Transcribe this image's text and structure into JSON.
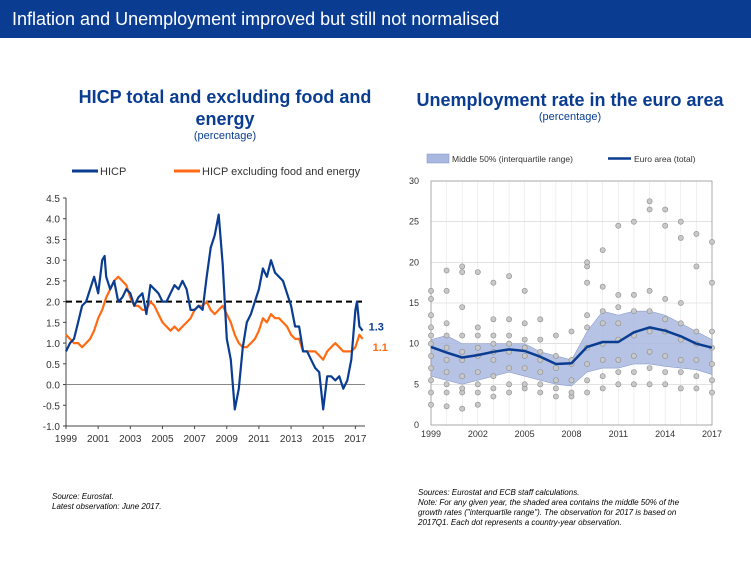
{
  "page": {
    "title": "Inflation and Unemployment improved but still not normalised"
  },
  "left": {
    "title_line1": "HICP total and excluding food and",
    "title_line2": "energy",
    "subtitle": "(percentage)",
    "source_line1": "Source: Eurostat.",
    "source_line2": "Latest observation: June 2017."
  },
  "right": {
    "title": "Unemployment rate in the euro area",
    "subtitle": "(percentage)",
    "source_line1": "Sources: Eurostat and ECB staff calculations.",
    "source_line2": "Note: For any given year, the shaded area contains the middle 50% of the",
    "source_line3": "growth rates (\"interquartile range\"). The observation for 2017 is based on",
    "source_line4": "2017Q1. Each dot represents a country-year observation."
  },
  "chart_data": [
    {
      "type": "line",
      "title": "HICP total and excluding food and energy",
      "subtitle": "(percentage)",
      "ylim": [
        -1.0,
        4.5
      ],
      "xlim": [
        1999,
        2017.6
      ],
      "x_ticks": [
        "1999",
        "2001",
        "2003",
        "2005",
        "2007",
        "2009",
        "2011",
        "2013",
        "2015",
        "2017"
      ],
      "y_ticks": [
        "-1.0",
        "-0.5",
        "0.0",
        "0.5",
        "1.0",
        "1.5",
        "2.0",
        "2.5",
        "3.0",
        "3.5",
        "4.0",
        "4.5"
      ],
      "reference_line": 2.0,
      "colors": {
        "HICP": "#0a3d91",
        "core": "#ff6a13",
        "reference": "#000000"
      },
      "end_labels": [
        "1.3",
        "1.1"
      ],
      "series": [
        {
          "name": "HICP",
          "x": [
            1999.0,
            1999.25,
            1999.5,
            1999.75,
            2000.0,
            2000.25,
            2000.5,
            2000.75,
            2001.0,
            2001.25,
            2001.4,
            2001.5,
            2001.75,
            2002.0,
            2002.25,
            2002.5,
            2002.75,
            2003.0,
            2003.25,
            2003.5,
            2003.75,
            2004.0,
            2004.25,
            2004.5,
            2004.75,
            2005.0,
            2005.25,
            2005.5,
            2005.75,
            2006.0,
            2006.25,
            2006.5,
            2006.75,
            2007.0,
            2007.25,
            2007.5,
            2007.75,
            2008.0,
            2008.25,
            2008.5,
            2008.75,
            2009.0,
            2009.25,
            2009.5,
            2009.75,
            2010.0,
            2010.25,
            2010.5,
            2010.75,
            2011.0,
            2011.25,
            2011.5,
            2011.75,
            2012.0,
            2012.25,
            2012.5,
            2012.75,
            2013.0,
            2013.25,
            2013.5,
            2013.75,
            2014.0,
            2014.25,
            2014.5,
            2014.75,
            2015.0,
            2015.25,
            2015.5,
            2015.75,
            2016.0,
            2016.25,
            2016.5,
            2016.75,
            2017.0,
            2017.1,
            2017.25,
            2017.45
          ],
          "values": [
            0.8,
            1.0,
            1.1,
            1.5,
            1.9,
            2.0,
            2.3,
            2.6,
            2.2,
            3.0,
            3.1,
            2.6,
            2.3,
            2.5,
            2.0,
            2.1,
            2.3,
            2.2,
            1.9,
            2.1,
            2.2,
            1.7,
            2.4,
            2.3,
            2.2,
            2.0,
            2.0,
            2.2,
            2.4,
            2.3,
            2.5,
            2.3,
            1.8,
            1.8,
            1.9,
            1.8,
            2.6,
            3.3,
            3.6,
            4.1,
            2.9,
            1.1,
            0.6,
            -0.6,
            -0.1,
            0.9,
            1.5,
            1.7,
            2.0,
            2.3,
            2.8,
            2.6,
            3.0,
            2.7,
            2.6,
            2.5,
            2.2,
            1.9,
            1.4,
            1.4,
            0.8,
            0.8,
            0.6,
            0.4,
            0.3,
            -0.6,
            0.2,
            0.2,
            0.1,
            0.2,
            -0.1,
            0.1,
            0.6,
            1.8,
            2.0,
            1.4,
            1.3
          ]
        },
        {
          "name": "HICP excluding food and energy",
          "x": [
            1999.0,
            1999.25,
            1999.5,
            1999.75,
            2000.0,
            2000.25,
            2000.5,
            2000.75,
            2001.0,
            2001.25,
            2001.5,
            2001.75,
            2002.0,
            2002.25,
            2002.5,
            2002.75,
            2003.0,
            2003.25,
            2003.5,
            2003.75,
            2004.0,
            2004.25,
            2004.5,
            2004.75,
            2005.0,
            2005.25,
            2005.5,
            2005.75,
            2006.0,
            2006.25,
            2006.5,
            2006.75,
            2007.0,
            2007.25,
            2007.5,
            2007.75,
            2008.0,
            2008.25,
            2008.5,
            2008.75,
            2009.0,
            2009.25,
            2009.5,
            2009.75,
            2010.0,
            2010.25,
            2010.5,
            2010.75,
            2011.0,
            2011.25,
            2011.5,
            2011.75,
            2012.0,
            2012.25,
            2012.5,
            2012.75,
            2013.0,
            2013.25,
            2013.5,
            2013.75,
            2014.0,
            2014.25,
            2014.5,
            2014.75,
            2015.0,
            2015.25,
            2015.5,
            2015.75,
            2016.0,
            2016.25,
            2016.5,
            2016.75,
            2017.0,
            2017.25,
            2017.45
          ],
          "values": [
            1.2,
            1.1,
            1.0,
            1.0,
            0.9,
            1.0,
            1.1,
            1.3,
            1.6,
            1.8,
            2.1,
            2.3,
            2.5,
            2.6,
            2.5,
            2.4,
            2.1,
            1.9,
            1.9,
            1.8,
            1.8,
            2.0,
            1.9,
            1.7,
            1.5,
            1.4,
            1.3,
            1.4,
            1.3,
            1.4,
            1.5,
            1.6,
            1.8,
            1.9,
            1.9,
            2.0,
            1.8,
            1.7,
            1.8,
            1.9,
            1.7,
            1.5,
            1.2,
            1.0,
            0.9,
            0.9,
            1.0,
            1.1,
            1.3,
            1.6,
            1.5,
            1.7,
            1.6,
            1.6,
            1.5,
            1.4,
            1.2,
            1.1,
            1.1,
            0.8,
            0.8,
            0.8,
            0.8,
            0.7,
            0.6,
            0.8,
            0.9,
            1.0,
            0.9,
            0.8,
            0.8,
            0.8,
            0.9,
            1.2,
            1.1
          ]
        }
      ]
    },
    {
      "type": "area",
      "title": "Unemployment rate in the euro area",
      "subtitle": "(percentage)",
      "ylim": [
        0,
        30
      ],
      "xlim": [
        1999,
        2017
      ],
      "x_ticks": [
        "1999",
        "2002",
        "2005",
        "2008",
        "2011",
        "2014",
        "2017"
      ],
      "y_ticks": [
        "0",
        "5",
        "10",
        "15",
        "20",
        "25",
        "30"
      ],
      "grid": true,
      "legend_placement": "top",
      "colors": {
        "band": "#a9b8e0",
        "line": "#0a3d91",
        "dots": "#c8c8c8"
      },
      "x": [
        1999,
        2000,
        2001,
        2002,
        2003,
        2004,
        2005,
        2006,
        2007,
        2008,
        2009,
        2010,
        2011,
        2012,
        2013,
        2014,
        2015,
        2016,
        2017
      ],
      "series": [
        {
          "name": "Middle 50% (interquartile range)",
          "lower": [
            6.0,
            5.5,
            5.0,
            5.5,
            6.0,
            6.5,
            6.0,
            5.5,
            5.0,
            4.8,
            6.5,
            7.0,
            7.0,
            7.5,
            7.5,
            7.2,
            7.0,
            6.8,
            6.2
          ],
          "upper": [
            10.5,
            11.0,
            10.0,
            10.0,
            10.0,
            10.0,
            10.0,
            9.0,
            8.5,
            8.0,
            11.5,
            14.0,
            13.5,
            14.0,
            14.0,
            13.5,
            12.5,
            11.5,
            10.5
          ]
        },
        {
          "name": "Euro area (total)",
          "values": [
            9.6,
            8.9,
            8.3,
            8.6,
            9.0,
            9.3,
            9.1,
            8.4,
            7.5,
            7.6,
            9.6,
            10.2,
            10.2,
            11.4,
            12.0,
            11.6,
            10.9,
            10.0,
            9.5
          ]
        }
      ],
      "dots": [
        [
          1999,
          2.5
        ],
        [
          1999,
          4.0
        ],
        [
          1999,
          5.5
        ],
        [
          1999,
          7.0
        ],
        [
          1999,
          8.5
        ],
        [
          1999,
          10.0
        ],
        [
          1999,
          11.0
        ],
        [
          1999,
          12.0
        ],
        [
          1999,
          13.5
        ],
        [
          1999,
          15.5
        ],
        [
          1999,
          16.5
        ],
        [
          2000,
          2.3
        ],
        [
          2000,
          4.0
        ],
        [
          2000,
          5.0
        ],
        [
          2000,
          6.5
        ],
        [
          2000,
          8.0
        ],
        [
          2000,
          9.5
        ],
        [
          2000,
          11.0
        ],
        [
          2000,
          12.5
        ],
        [
          2000,
          16.5
        ],
        [
          2000,
          19.0
        ],
        [
          2001,
          2.0
        ],
        [
          2001,
          4.0
        ],
        [
          2001,
          4.5
        ],
        [
          2001,
          6.0
        ],
        [
          2001,
          8.0
        ],
        [
          2001,
          9.0
        ],
        [
          2001,
          11.0
        ],
        [
          2001,
          14.5
        ],
        [
          2001,
          18.8
        ],
        [
          2001,
          19.5
        ],
        [
          2002,
          2.5
        ],
        [
          2002,
          4.0
        ],
        [
          2002,
          5.0
        ],
        [
          2002,
          6.5
        ],
        [
          2002,
          8.5
        ],
        [
          2002,
          9.5
        ],
        [
          2002,
          11.0
        ],
        [
          2002,
          12.0
        ],
        [
          2002,
          18.8
        ],
        [
          2003,
          3.5
        ],
        [
          2003,
          4.5
        ],
        [
          2003,
          6.0
        ],
        [
          2003,
          8.0
        ],
        [
          2003,
          9.0
        ],
        [
          2003,
          10.0
        ],
        [
          2003,
          11.0
        ],
        [
          2003,
          13.0
        ],
        [
          2003,
          17.5
        ],
        [
          2004,
          4.0
        ],
        [
          2004,
          5.0
        ],
        [
          2004,
          7.0
        ],
        [
          2004,
          9.0
        ],
        [
          2004,
          10.0
        ],
        [
          2004,
          11.0
        ],
        [
          2004,
          13.0
        ],
        [
          2004,
          18.3
        ],
        [
          2005,
          4.5
        ],
        [
          2005,
          5.0
        ],
        [
          2005,
          7.0
        ],
        [
          2005,
          8.5
        ],
        [
          2005,
          9.5
        ],
        [
          2005,
          10.5
        ],
        [
          2005,
          12.5
        ],
        [
          2005,
          16.5
        ],
        [
          2006,
          4.0
        ],
        [
          2006,
          5.0
        ],
        [
          2006,
          6.5
        ],
        [
          2006,
          8.0
        ],
        [
          2006,
          9.0
        ],
        [
          2006,
          10.5
        ],
        [
          2006,
          13.0
        ],
        [
          2007,
          3.5
        ],
        [
          2007,
          4.5
        ],
        [
          2007,
          5.5
        ],
        [
          2007,
          7.0
        ],
        [
          2007,
          8.5
        ],
        [
          2007,
          11.0
        ],
        [
          2008,
          3.5
        ],
        [
          2008,
          4.0
        ],
        [
          2008,
          5.5
        ],
        [
          2008,
          7.5
        ],
        [
          2008,
          8.0
        ],
        [
          2008,
          11.5
        ],
        [
          2009,
          4.0
        ],
        [
          2009,
          5.5
        ],
        [
          2009,
          7.5
        ],
        [
          2009,
          9.5
        ],
        [
          2009,
          12.0
        ],
        [
          2009,
          13.5
        ],
        [
          2009,
          17.5
        ],
        [
          2009,
          19.5
        ],
        [
          2009,
          20.0
        ],
        [
          2010,
          4.5
        ],
        [
          2010,
          6.0
        ],
        [
          2010,
          8.0
        ],
        [
          2010,
          10.0
        ],
        [
          2010,
          12.5
        ],
        [
          2010,
          14.0
        ],
        [
          2010,
          17.0
        ],
        [
          2010,
          21.5
        ],
        [
          2011,
          5.0
        ],
        [
          2011,
          6.5
        ],
        [
          2011,
          8.0
        ],
        [
          2011,
          10.5
        ],
        [
          2011,
          12.5
        ],
        [
          2011,
          14.5
        ],
        [
          2011,
          16.0
        ],
        [
          2011,
          24.5
        ],
        [
          2012,
          5.0
        ],
        [
          2012,
          6.5
        ],
        [
          2012,
          8.5
        ],
        [
          2012,
          11.0
        ],
        [
          2012,
          14.0
        ],
        [
          2012,
          16.0
        ],
        [
          2012,
          25.0
        ],
        [
          2013,
          5.0
        ],
        [
          2013,
          7.0
        ],
        [
          2013,
          9.0
        ],
        [
          2013,
          11.5
        ],
        [
          2013,
          14.0
        ],
        [
          2013,
          16.5
        ],
        [
          2013,
          26.5
        ],
        [
          2013,
          27.5
        ],
        [
          2014,
          5.0
        ],
        [
          2014,
          6.5
        ],
        [
          2014,
          8.5
        ],
        [
          2014,
          11.5
        ],
        [
          2014,
          13.0
        ],
        [
          2014,
          15.5
        ],
        [
          2014,
          24.5
        ],
        [
          2014,
          26.5
        ],
        [
          2015,
          4.5
        ],
        [
          2015,
          6.5
        ],
        [
          2015,
          8.0
        ],
        [
          2015,
          10.5
        ],
        [
          2015,
          12.5
        ],
        [
          2015,
          15.0
        ],
        [
          2015,
          23.0
        ],
        [
          2015,
          25.0
        ],
        [
          2016,
          4.5
        ],
        [
          2016,
          6.0
        ],
        [
          2016,
          8.0
        ],
        [
          2016,
          10.0
        ],
        [
          2016,
          11.5
        ],
        [
          2016,
          19.5
        ],
        [
          2016,
          23.5
        ],
        [
          2017,
          4.0
        ],
        [
          2017,
          5.5
        ],
        [
          2017,
          7.5
        ],
        [
          2017,
          9.5
        ],
        [
          2017,
          11.5
        ],
        [
          2017,
          17.5
        ],
        [
          2017,
          22.5
        ]
      ]
    }
  ]
}
